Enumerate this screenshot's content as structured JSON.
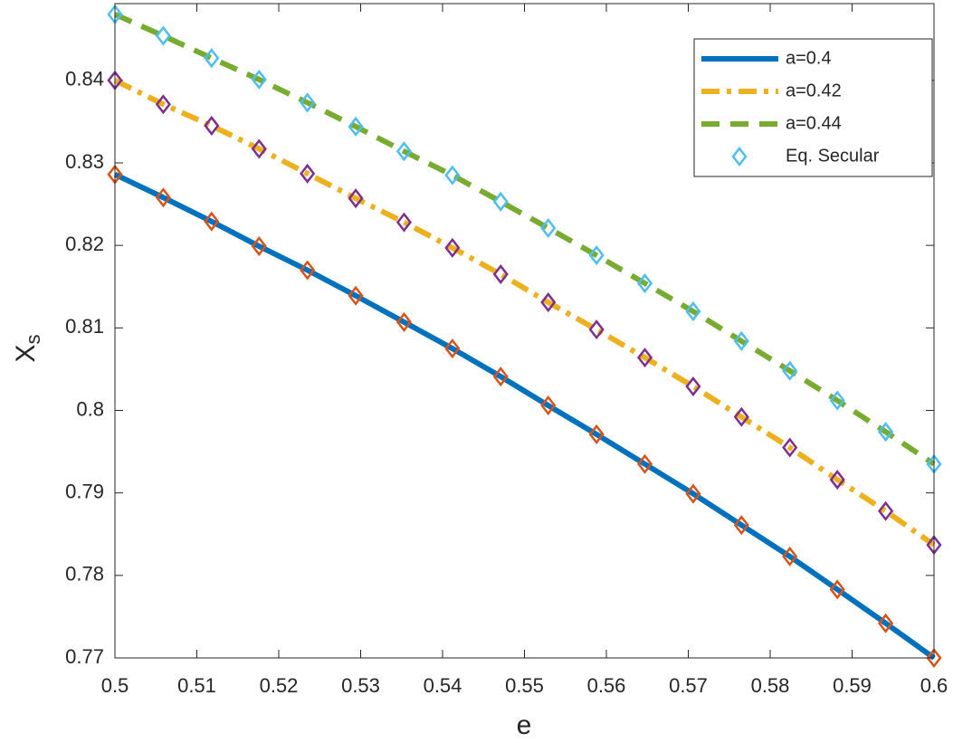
{
  "chart_data": {
    "type": "line",
    "xlabel": "e",
    "ylabel": {
      "text": "X",
      "subscript": "s"
    },
    "x": [
      0.5,
      0.5059,
      0.5118,
      0.5176,
      0.5235,
      0.5294,
      0.5353,
      0.5412,
      0.5471,
      0.5529,
      0.5588,
      0.5647,
      0.5706,
      0.5765,
      0.5824,
      0.5882,
      0.5941,
      0.6
    ],
    "series": [
      {
        "name": "a=0.4",
        "color": "#0072bd",
        "dash": "solid",
        "marker_color": "#d95319",
        "values": [
          0.8286,
          0.8258,
          0.8229,
          0.8199,
          0.817,
          0.8139,
          0.8107,
          0.8075,
          0.8041,
          0.8006,
          0.7971,
          0.7935,
          0.7899,
          0.7861,
          0.7823,
          0.7783,
          0.7742,
          0.77
        ]
      },
      {
        "name": "a=0.42",
        "color": "#edb120",
        "dash": "dashdot",
        "marker_color": "#7e2f8e",
        "values": [
          0.84,
          0.8371,
          0.8345,
          0.8317,
          0.8287,
          0.8257,
          0.8228,
          0.8197,
          0.8165,
          0.8131,
          0.8098,
          0.8064,
          0.8029,
          0.7992,
          0.7955,
          0.7916,
          0.7878,
          0.7837
        ]
      },
      {
        "name": "a=0.44",
        "color": "#77ac30",
        "dash": "dashed",
        "marker_color": "#4dbeee",
        "values": [
          0.848,
          0.8454,
          0.8427,
          0.8401,
          0.8373,
          0.8344,
          0.8314,
          0.8285,
          0.8253,
          0.8221,
          0.8188,
          0.8154,
          0.812,
          0.8084,
          0.8048,
          0.8012,
          0.7974,
          0.7935
        ]
      }
    ],
    "marker_legend": {
      "name": "Eq. Secular",
      "color": "#4dbeee"
    },
    "xlim": [
      0.5,
      0.6
    ],
    "xticks": [
      0.5,
      0.51,
      0.52,
      0.53,
      0.54,
      0.55,
      0.56,
      0.57,
      0.58,
      0.59,
      0.6
    ],
    "ylim": [
      0.77,
      0.8493
    ],
    "yticks": [
      0.77,
      0.78,
      0.79,
      0.8,
      0.81,
      0.82,
      0.83,
      0.84
    ],
    "legend": "upper right",
    "grid": false
  }
}
